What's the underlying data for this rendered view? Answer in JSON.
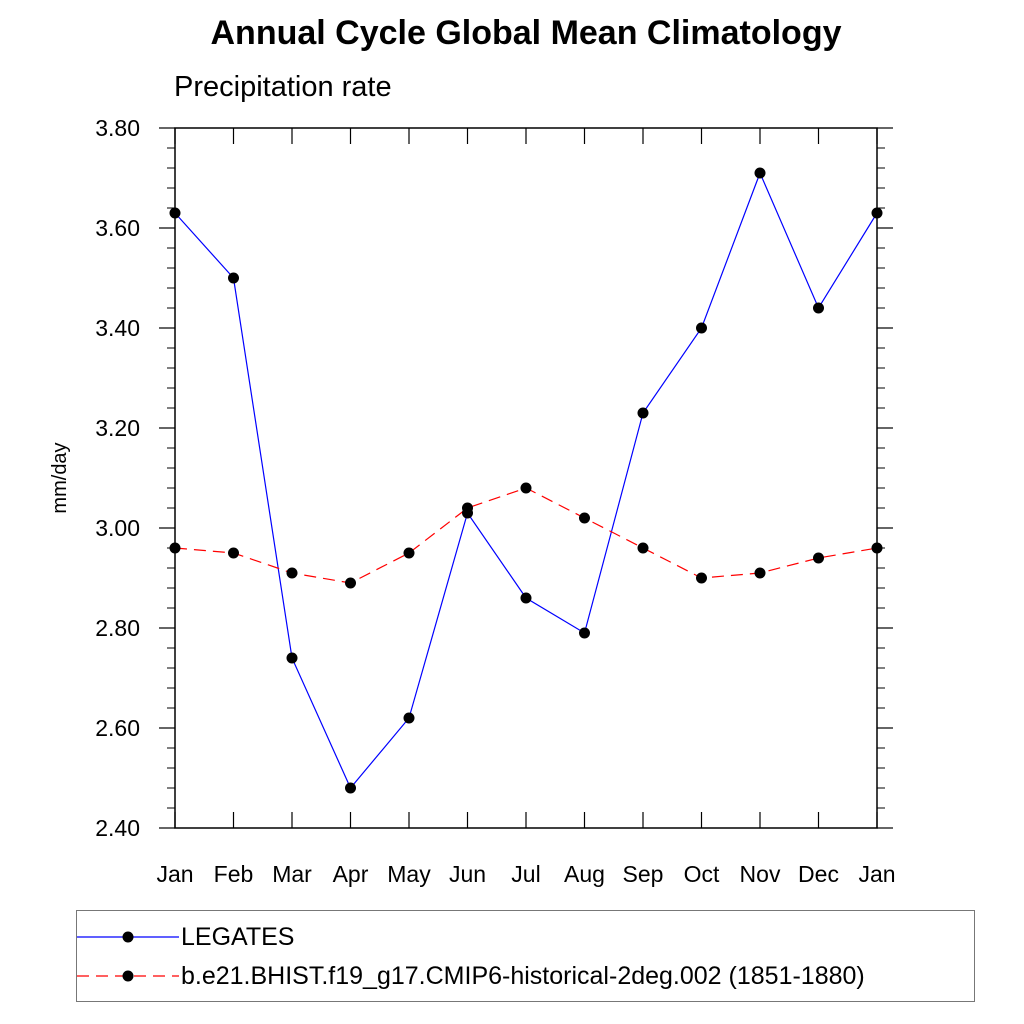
{
  "chart_data": {
    "type": "line",
    "title": "Annual Cycle Global Mean Climatology",
    "subtitle": "Precipitation rate",
    "xlabel": "",
    "ylabel": "mm/day",
    "categories": [
      "Jan",
      "Feb",
      "Mar",
      "Apr",
      "May",
      "Jun",
      "Jul",
      "Aug",
      "Sep",
      "Oct",
      "Nov",
      "Dec",
      "Jan"
    ],
    "yticks": [
      "2.40",
      "2.60",
      "2.80",
      "3.00",
      "3.20",
      "3.40",
      "3.60",
      "3.80"
    ],
    "ylim": [
      2.4,
      3.8
    ],
    "grid": false,
    "legend_position": "bottom",
    "series": [
      {
        "name": "LEGATES",
        "color": "#0000ff",
        "line_style": "solid",
        "marker": "filled-circle",
        "values": [
          3.63,
          3.5,
          2.74,
          2.48,
          2.62,
          3.03,
          2.86,
          2.79,
          3.23,
          3.4,
          3.71,
          3.44,
          3.63
        ]
      },
      {
        "name": "b.e21.BHIST.f19_g17.CMIP6-historical-2deg.002 (1851-1880)",
        "color": "#ff0000",
        "line_style": "dashed",
        "marker": "filled-circle",
        "values": [
          2.96,
          2.95,
          2.91,
          2.89,
          2.95,
          3.04,
          3.08,
          3.02,
          2.96,
          2.9,
          2.91,
          2.94,
          2.96
        ]
      }
    ]
  }
}
